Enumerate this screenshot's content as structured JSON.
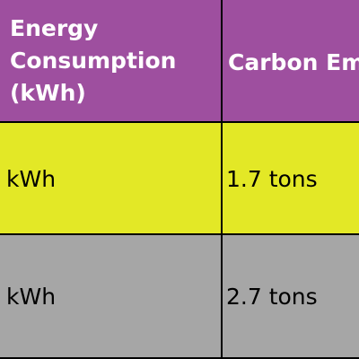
{
  "table": {
    "header": {
      "energy": [
        "Energy",
        "Consumption",
        "(kWh)"
      ],
      "carbon": "Carbon Emissions"
    },
    "rows": [
      {
        "energy": "kWh",
        "carbon": "1.7 tons"
      },
      {
        "energy": "kWh",
        "carbon": "2.7 tons"
      }
    ]
  },
  "colors": {
    "header_bg": "#9e4f9f",
    "row1_bg": "#e3e826",
    "row2_bg": "#a6a6a6",
    "border": "#000000"
  }
}
